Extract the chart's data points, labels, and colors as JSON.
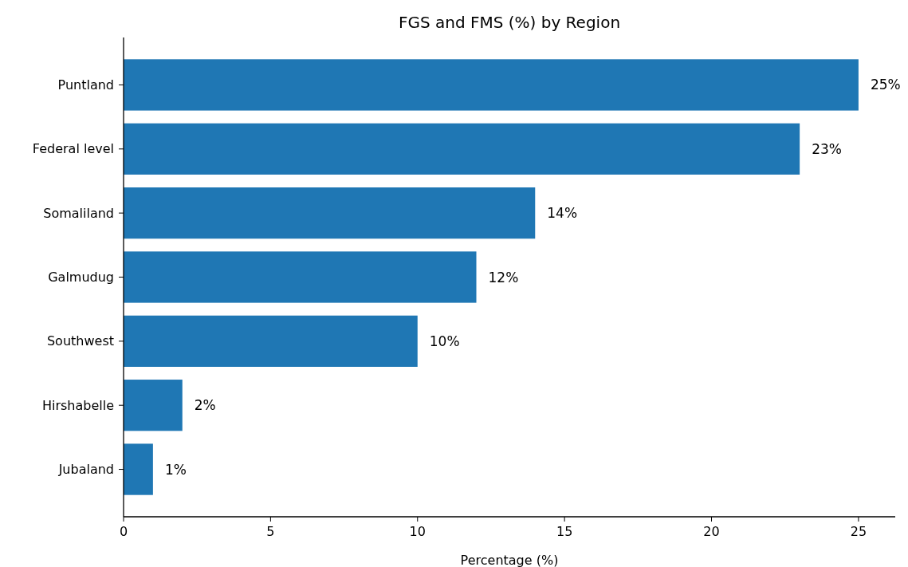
{
  "chart_data": {
    "type": "bar",
    "orientation": "horizontal",
    "title": "FGS and FMS (%) by Region",
    "xlabel": "Percentage (%)",
    "categories": [
      "Puntland",
      "Federal level",
      "Somaliland",
      "Galmudug",
      "Southwest",
      "Hirshabelle",
      "Jubaland"
    ],
    "values": [
      25,
      23,
      14,
      12,
      10,
      2,
      1
    ],
    "value_labels": [
      "25%",
      "23%",
      "14%",
      "12%",
      "10%",
      "2%",
      "1%"
    ],
    "color": "#1f77b4",
    "xlim": [
      0,
      26.25
    ],
    "xticks": [
      0,
      5,
      10,
      15,
      20,
      25
    ],
    "grid": false
  }
}
